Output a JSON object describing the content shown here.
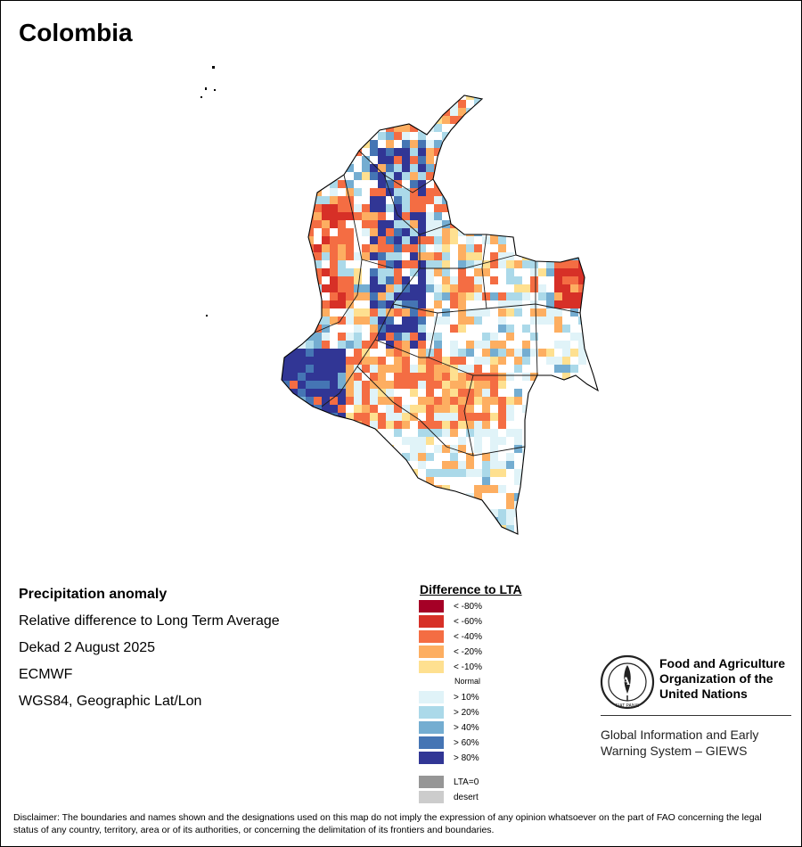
{
  "map": {
    "title": "Colombia",
    "country_label": "Colombia"
  },
  "info": {
    "lines": [
      "Precipitation anomaly",
      "Relative difference to Long Term Average",
      "Dekad 2 August 2025",
      "ECMWF",
      "WGS84, Geographic Lat/Lon"
    ]
  },
  "legend": {
    "title": "Difference to LTA",
    "normal_label": "Normal",
    "items": [
      {
        "label": "< -80%",
        "color": "#a50026"
      },
      {
        "label": "< -60%",
        "color": "#d73027"
      },
      {
        "label": "< -40%",
        "color": "#f46d43"
      },
      {
        "label": "< -20%",
        "color": "#fdae61"
      },
      {
        "label": "< -10%",
        "color": "#fee090"
      },
      {
        "label": "> 10%",
        "color": "#e0f3f8"
      },
      {
        "label": "> 20%",
        "color": "#abd9e9"
      },
      {
        "label": "> 40%",
        "color": "#74add1"
      },
      {
        "label": "> 60%",
        "color": "#4575b4"
      },
      {
        "label": "> 80%",
        "color": "#313695"
      },
      {
        "label": "LTA=0",
        "color": "#969696"
      },
      {
        "label": "desert",
        "color": "#cccccc"
      }
    ]
  },
  "logo": {
    "org_name": "Food and Agriculture Organization of the United Nations",
    "emblem_text": "FAO",
    "emblem_motto": "FIAT PANIS",
    "system_name": "Global Information and Early Warning System – GIEWS"
  },
  "disclaimer": "Disclaimer: The boundaries and names shown and the designations used on this map do not imply the expression of any opinion whatsoever on the part of FAO concerning the legal status of any country, territory, area or of its authorities, or concerning the delimitation of its frontiers and boundaries."
}
